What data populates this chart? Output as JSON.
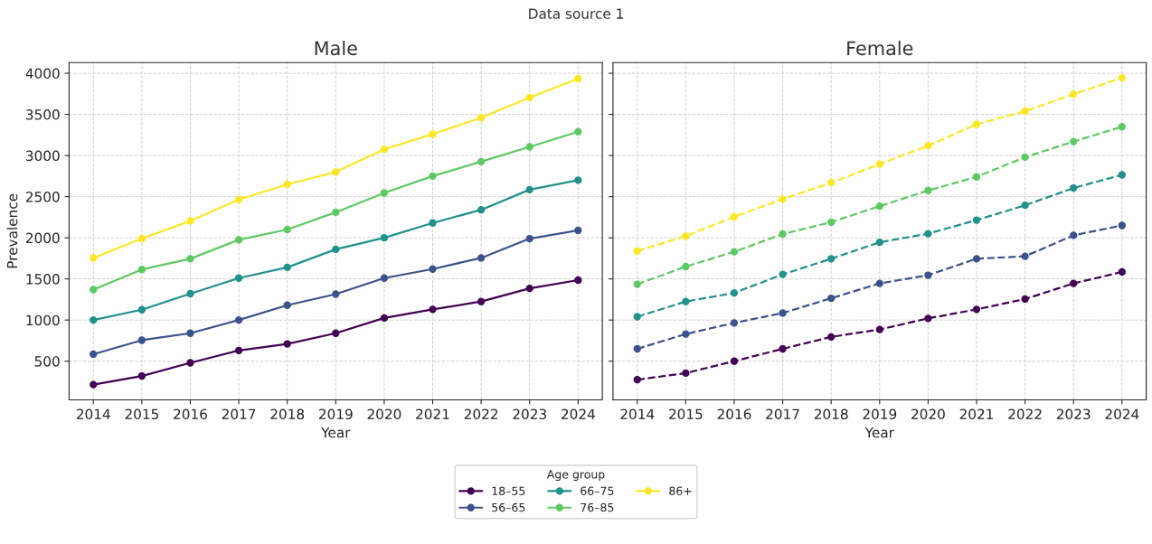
{
  "chart_data": [
    {
      "type": "line",
      "title": "Male",
      "xlabel": "Year",
      "ylabel": "Prevalence",
      "annotations": [
        "Data source 1"
      ],
      "legend_title": "Age group",
      "legend": "bottom",
      "marker": "circle",
      "line_style": "solid",
      "grid": true,
      "x": [
        2014,
        2015,
        2016,
        2017,
        2018,
        2019,
        2020,
        2021,
        2022,
        2023,
        2024
      ],
      "xlim": [
        2013.5,
        2024.5
      ],
      "xticks": [
        2014,
        2015,
        2016,
        2017,
        2018,
        2019,
        2020,
        2021,
        2022,
        2023,
        2024
      ],
      "ylim": [
        30,
        4130
      ],
      "yticks": [
        500,
        1000,
        1500,
        2000,
        2500,
        3000,
        3500,
        4000
      ],
      "series": [
        {
          "name": "18–55",
          "color": "#440154",
          "values": [
            215,
            320,
            480,
            630,
            710,
            840,
            1025,
            1130,
            1225,
            1385,
            1485
          ]
        },
        {
          "name": "56–65",
          "color": "#3b528b",
          "values": [
            585,
            755,
            840,
            1000,
            1180,
            1315,
            1510,
            1620,
            1755,
            1990,
            2090
          ]
        },
        {
          "name": "66–75",
          "color": "#21918c",
          "values": [
            1000,
            1125,
            1320,
            1510,
            1640,
            1860,
            2000,
            2180,
            2340,
            2585,
            2700
          ]
        },
        {
          "name": "76–85",
          "color": "#5ec962",
          "values": [
            1370,
            1615,
            1745,
            1975,
            2100,
            2310,
            2545,
            2750,
            2925,
            3105,
            3290
          ]
        },
        {
          "name": "86+",
          "color": "#fde725",
          "values": [
            1755,
            1990,
            2205,
            2465,
            2650,
            2800,
            3075,
            3260,
            3460,
            3705,
            3935
          ]
        }
      ]
    },
    {
      "type": "line",
      "title": "Female",
      "xlabel": "Year",
      "marker": "circle",
      "line_style": "dashed",
      "grid": true,
      "tick_labels": "x",
      "x": [
        2014,
        2015,
        2016,
        2017,
        2018,
        2019,
        2020,
        2021,
        2022,
        2023,
        2024
      ],
      "xlim": [
        2013.5,
        2024.5
      ],
      "xticks": [
        2014,
        2015,
        2016,
        2017,
        2018,
        2019,
        2020,
        2021,
        2022,
        2023,
        2024
      ],
      "ylim": [
        30,
        4130
      ],
      "yticks": [
        500,
        1000,
        1500,
        2000,
        2500,
        3000,
        3500,
        4000
      ],
      "series": [
        {
          "color": "#440154",
          "values": [
            275,
            355,
            500,
            650,
            795,
            885,
            1020,
            1130,
            1255,
            1445,
            1585
          ]
        },
        {
          "color": "#3b528b",
          "values": [
            650,
            830,
            965,
            1085,
            1265,
            1445,
            1545,
            1745,
            1775,
            2030,
            2150
          ]
        },
        {
          "color": "#21918c",
          "values": [
            1040,
            1225,
            1330,
            1555,
            1745,
            1945,
            2050,
            2215,
            2395,
            2605,
            2765
          ]
        },
        {
          "color": "#5ec962",
          "values": [
            1435,
            1650,
            1830,
            2045,
            2190,
            2385,
            2575,
            2740,
            2980,
            3170,
            3350
          ]
        },
        {
          "color": "#fde725",
          "values": [
            1840,
            2020,
            2255,
            2470,
            2670,
            2895,
            3120,
            3380,
            3540,
            3745,
            3945
          ]
        }
      ]
    }
  ]
}
